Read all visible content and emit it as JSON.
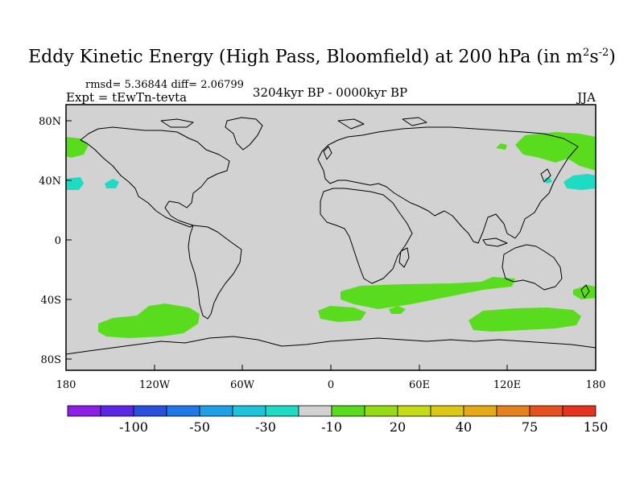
{
  "title": {
    "main": "Eddy Kinetic Energy (High Pass, Bloomfield) at 200 hPa (in m",
    "sup1": "2",
    "mid": "s",
    "sup2": "-2",
    "close": ")"
  },
  "stats": "rmsd= 5.36844 diff= 2.06799",
  "expt": "Expt = tEwTn-tevta",
  "period": "3204kyr BP - 0000kyr BP",
  "season": "JJA",
  "axes": {
    "x_ticks": [
      "180",
      "120W",
      "60W",
      "0",
      "60E",
      "120E",
      "180"
    ],
    "y_ticks": [
      "80N",
      "40N",
      "0",
      "40S",
      "80S"
    ]
  },
  "colorbar": {
    "colors": [
      "#8c1ee6",
      "#5a28e6",
      "#2850dc",
      "#1e78e6",
      "#1ea0e6",
      "#1ec3dc",
      "#1edcc3",
      "#d2d2d2",
      "#5adc1e",
      "#96dc14",
      "#c3dc14",
      "#dcc814",
      "#e6aa14",
      "#e6821e",
      "#e6501e",
      "#e6321e"
    ],
    "labels": [
      "-100",
      "-50",
      "-30",
      "-10",
      "20",
      "40",
      "75",
      "150"
    ]
  },
  "colors": {
    "land_ocean": "#d2d2d2",
    "positive": "#5adc1e",
    "negative": "#1edcc3"
  }
}
